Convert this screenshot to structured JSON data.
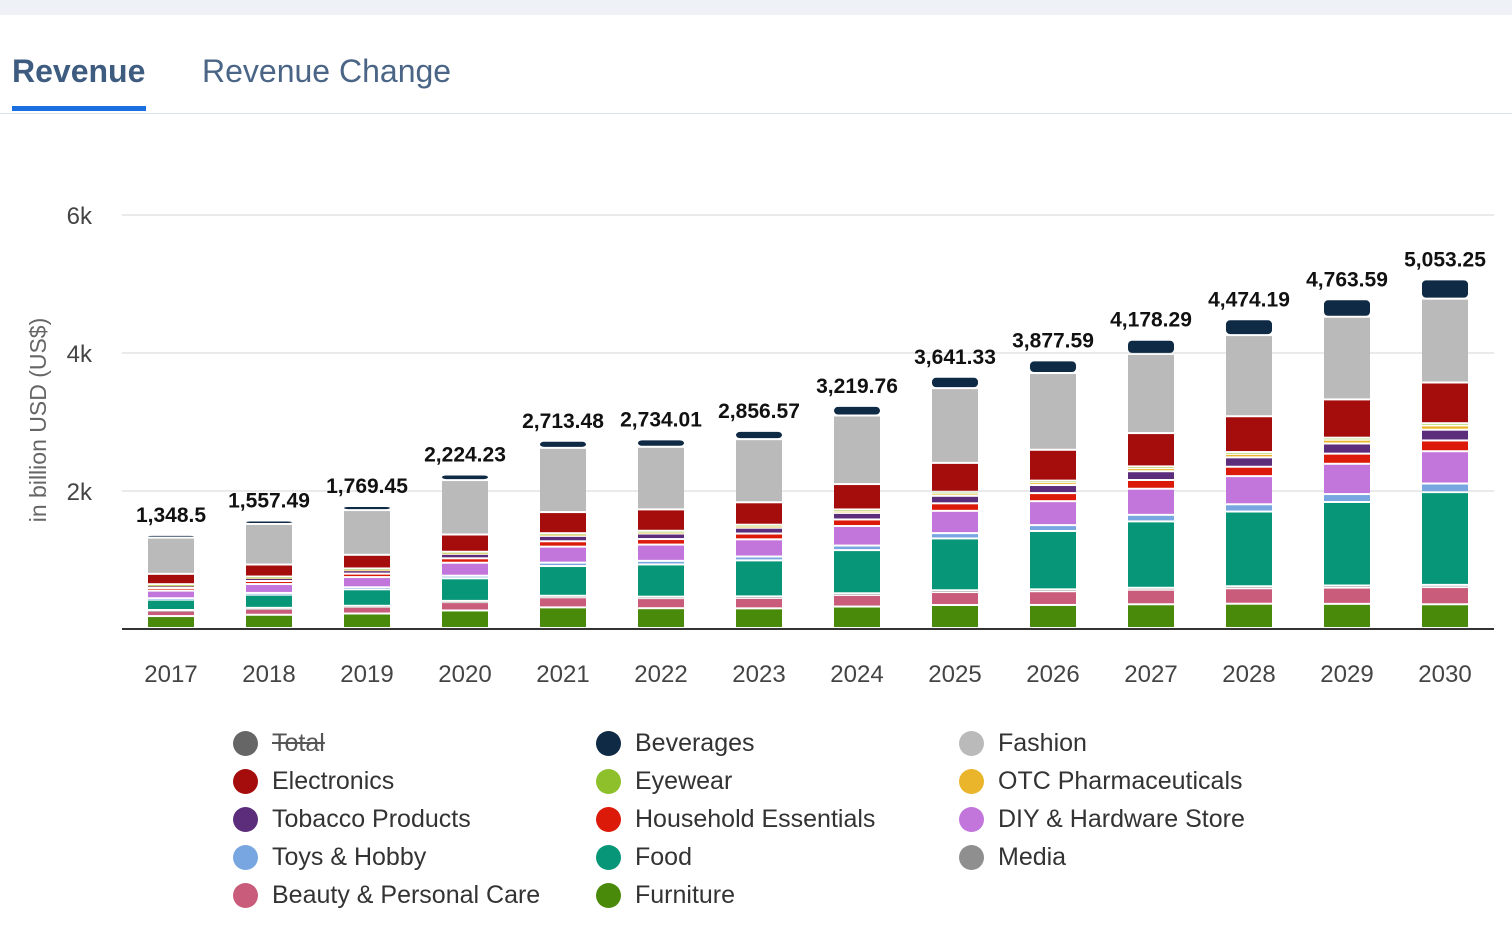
{
  "tabs": [
    {
      "label": "Revenue",
      "active": true
    },
    {
      "label": "Revenue Change",
      "active": false
    }
  ],
  "accent": "#1a6fe0",
  "chart_data": {
    "type": "bar",
    "stacked": true,
    "ylabel": "in billion USD (US$)",
    "ylim": [
      0,
      6000
    ],
    "yticks": [
      {
        "value": 2000,
        "label": "2k"
      },
      {
        "value": 4000,
        "label": "4k"
      },
      {
        "value": 6000,
        "label": "6k"
      }
    ],
    "grid": true,
    "legend_placement": "bottom",
    "categories": [
      "2017",
      "2018",
      "2019",
      "2020",
      "2021",
      "2022",
      "2023",
      "2024",
      "2025",
      "2026",
      "2027",
      "2028",
      "2029",
      "2030"
    ],
    "totals": [
      "1,348.5",
      "1,557.49",
      "1,769.45",
      "2,224.23",
      "2,713.48",
      "2,734.01",
      "2,856.57",
      "3,219.76",
      "3,641.33",
      "3,877.59",
      "4,178.29",
      "4,474.19",
      "4,763.59",
      "5,053.25"
    ],
    "total_series": {
      "name": "Total",
      "color": "#666666",
      "hidden": true
    },
    "series": [
      {
        "name": "Furniture",
        "color": "#4a8a0a",
        "values": [
          173,
          192,
          210,
          254,
          299,
          287,
          285,
          311,
          333,
          334,
          344,
          352,
          350,
          344
        ]
      },
      {
        "name": "Beauty & Personal Care",
        "color": "#c95c7a",
        "values": [
          76,
          86,
          97,
          121,
          146,
          146,
          151,
          168,
          188,
          199,
          211,
          224,
          236,
          249
        ]
      },
      {
        "name": "Media",
        "color": "#8f8f8f",
        "values": [
          12,
          14,
          15,
          18,
          22,
          21,
          22,
          24,
          26,
          27,
          28,
          29,
          30,
          32
        ]
      },
      {
        "name": "Food",
        "color": "#079678",
        "values": [
          150,
          191,
          239,
          327,
          431,
          467,
          522,
          626,
          751,
          846,
          962,
          1083,
          1210,
          1344
        ]
      },
      {
        "name": "Toys & Hobby",
        "color": "#78a6e0",
        "values": [
          20,
          25,
          29,
          38,
          49,
          52,
          56,
          66,
          77,
          85,
          95,
          105,
          115,
          125
        ]
      },
      {
        "name": "DIY & Hardware Store",
        "color": "#c275da",
        "values": [
          111,
          129,
          148,
          188,
          232,
          236,
          249,
          283,
          323,
          347,
          378,
          408,
          439,
          468
        ]
      },
      {
        "name": "Household Essentials",
        "color": "#dc1a0a",
        "values": [
          38,
          44,
          50,
          64,
          78,
          80,
          84,
          95,
          109,
          117,
          127,
          136,
          147,
          156
        ]
      },
      {
        "name": "Tobacco Products",
        "color": "#5c2d7a",
        "values": [
          38,
          44,
          50,
          64,
          78,
          80,
          84,
          95,
          109,
          117,
          127,
          136,
          147,
          156
        ]
      },
      {
        "name": "OTC Pharmaceuticals",
        "color": "#eab52a",
        "values": [
          9,
          12,
          14,
          18,
          23,
          24,
          27,
          31,
          37,
          41,
          45,
          50,
          55,
          62
        ]
      },
      {
        "name": "Eyewear",
        "color": "#8dc02b",
        "values": [
          8,
          9,
          11,
          13,
          16,
          16,
          17,
          19,
          22,
          23,
          25,
          27,
          29,
          32
        ]
      },
      {
        "name": "Electronics",
        "color": "#a50c0c",
        "values": [
          150,
          174,
          198,
          250,
          306,
          310,
          325,
          368,
          418,
          447,
          483,
          519,
          555,
          590
        ]
      },
      {
        "name": "Fashion",
        "color": "#bababa",
        "values": [
          525,
          588,
          648,
          789,
          931,
          907,
          915,
          994,
          1083,
          1112,
          1147,
          1176,
          1198,
          1215
        ]
      },
      {
        "name": "Beverages",
        "color": "#0f2a44",
        "values": [
          40,
          50,
          60,
          80,
          102,
          108,
          119,
          140,
          165,
          183,
          206,
          229,
          253,
          280
        ]
      }
    ],
    "legend_order": [
      "Total",
      "Beverages",
      "Fashion",
      "Electronics",
      "Eyewear",
      "OTC Pharmaceuticals",
      "Tobacco Products",
      "Household Essentials",
      "DIY & Hardware Store",
      "Toys & Hobby",
      "Food",
      "Media",
      "Beauty & Personal Care",
      "Furniture"
    ]
  }
}
